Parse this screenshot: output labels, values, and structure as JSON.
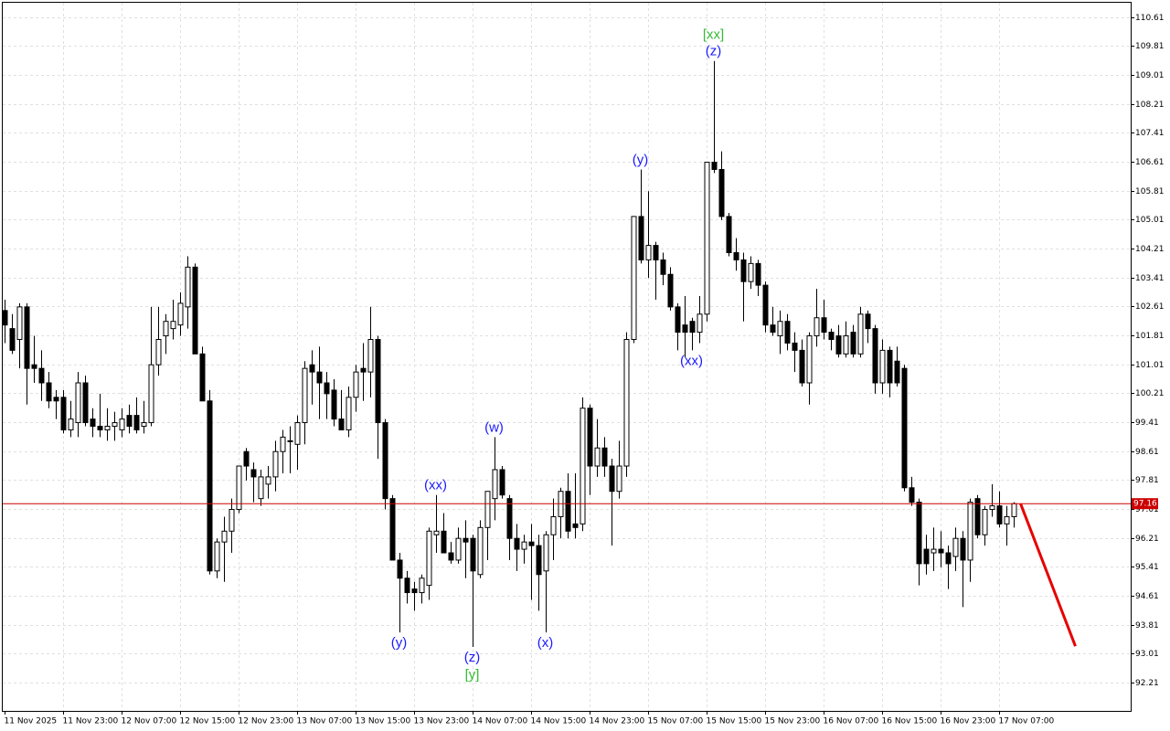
{
  "chart_data": {
    "type": "candlestick",
    "categories": [
      "11 Nov 2025",
      null,
      null,
      null,
      null,
      null,
      null,
      null,
      "11 Nov 23:00",
      null,
      null,
      null,
      null,
      null,
      null,
      null,
      "12 Nov 07:00",
      null,
      null,
      null,
      null,
      null,
      null,
      null,
      "12 Nov 15:00",
      null,
      null,
      null,
      null,
      null,
      null,
      null,
      "12 Nov 23:00",
      null,
      null,
      null,
      null,
      null,
      null,
      null,
      "13 Nov 07:00",
      null,
      null,
      null,
      null,
      null,
      null,
      null,
      "13 Nov 15:00",
      null,
      null,
      null,
      null,
      null,
      null,
      null,
      "13 Nov 23:00",
      null,
      null,
      null,
      null,
      null,
      null,
      null,
      "14 Nov 07:00",
      null,
      null,
      null,
      null,
      null,
      null,
      null,
      "14 Nov 15:00",
      null,
      null,
      null,
      null,
      null,
      null,
      null,
      "14 Nov 23:00",
      null,
      null,
      null,
      null,
      null,
      null,
      null,
      "15 Nov 07:00",
      null,
      null,
      null,
      null,
      null,
      null,
      null,
      "15 Nov 15:00",
      null,
      null,
      null,
      null,
      null,
      null,
      null,
      "15 Nov 23:00",
      null,
      null,
      null,
      null,
      null,
      null,
      null,
      "16 Nov 07:00",
      null,
      null,
      null,
      null,
      null,
      null,
      null,
      "16 Nov 15:00",
      null,
      null,
      null,
      null,
      null,
      null,
      null,
      "16 Nov 23:00",
      null,
      null,
      null,
      null,
      null,
      null,
      null,
      "17 Nov 07:00",
      null,
      null
    ],
    "open": [
      102.5,
      102.0,
      101.7,
      102.6,
      101.0,
      100.9,
      100.5,
      100.1,
      100.1,
      99.2,
      99.4,
      100.5,
      99.5,
      99.3,
      99.2,
      99.3,
      99.2,
      99.6,
      99.6,
      99.3,
      99.4,
      101.0,
      101.8,
      102.0,
      102.1,
      102.6,
      103.7,
      101.3,
      100.0,
      95.3,
      96.1,
      96.4,
      97.0,
      98.6,
      98.1,
      97.3,
      97.7,
      97.9,
      98.6,
      98.9,
      98.8,
      99.4,
      101.0,
      100.8,
      100.5,
      100.3,
      99.5,
      99.2,
      100.1,
      100.9,
      100.8,
      101.7,
      99.4,
      97.3,
      95.6,
      95.1,
      94.8,
      94.7,
      94.9,
      96.3,
      96.4,
      95.8,
      95.6,
      96.2,
      96.2,
      95.2,
      96.5,
      97.3,
      98.1,
      97.3,
      96.2,
      95.9,
      96.1,
      96.0,
      95.3,
      96.3,
      96.8,
      97.5,
      96.6,
      96.6,
      99.8,
      98.2,
      98.7,
      98.2,
      97.5,
      98.2,
      101.7,
      105.1,
      103.9,
      104.3,
      103.9,
      103.5,
      102.6,
      102.1,
      102.2,
      101.9,
      102.4,
      106.6,
      106.4,
      105.1,
      104.1,
      103.9,
      103.3,
      103.8,
      103.2,
      102.1,
      101.8,
      102.2,
      101.6,
      101.4,
      100.5,
      101.8,
      102.3,
      101.9,
      101.8,
      101.3,
      101.9,
      101.3,
      102.4,
      102.0,
      100.5,
      101.4,
      101.1,
      100.9,
      97.6,
      97.2,
      95.9,
      95.8,
      95.9,
      95.8,
      95.7,
      96.2,
      95.6,
      97.3,
      96.3,
      97.0,
      97.1,
      96.6,
      96.8
    ],
    "high": [
      102.8,
      102.4,
      102.7,
      102.7,
      101.8,
      101.4,
      100.8,
      100.3,
      100.3,
      100.0,
      100.8,
      100.7,
      99.8,
      100.2,
      99.8,
      99.7,
      99.8,
      99.9,
      100.1,
      100.0,
      102.6,
      102.6,
      102.4,
      102.8,
      103.0,
      104.0,
      103.8,
      101.5,
      100.3,
      96.2,
      96.8,
      97.3,
      98.2,
      98.7,
      98.3,
      98.1,
      98.2,
      98.9,
      99.2,
      99.3,
      99.6,
      101.1,
      101.4,
      101.5,
      100.8,
      100.6,
      100.3,
      100.4,
      101.0,
      101.6,
      102.6,
      101.8,
      99.5,
      97.4,
      95.8,
      95.3,
      95.0,
      95.2,
      96.5,
      97.4,
      96.9,
      96.1,
      96.5,
      96.7,
      96.3,
      96.7,
      97.5,
      99.0,
      98.2,
      97.4,
      96.6,
      96.3,
      96.6,
      96.3,
      96.4,
      97.3,
      97.6,
      98.0,
      98.0,
      100.1,
      99.9,
      99.5,
      99.0,
      98.4,
      98.9,
      101.9,
      105.1,
      106.4,
      105.8,
      104.4,
      104.1,
      103.7,
      102.7,
      102.9,
      102.3,
      102.9,
      106.6,
      109.4,
      106.9,
      105.2,
      104.5,
      104.1,
      104.0,
      103.9,
      103.3,
      102.6,
      102.5,
      102.4,
      101.9,
      101.7,
      101.9,
      103.1,
      102.8,
      102.0,
      102.1,
      102.2,
      102.1,
      102.6,
      102.5,
      102.1,
      101.7,
      101.5,
      101.5,
      101.0,
      97.9,
      97.3,
      96.3,
      96.5,
      96.4,
      96.0,
      96.5,
      96.4,
      97.3,
      97.4,
      97.1,
      97.7,
      97.5,
      97.1,
      97.2
    ],
    "low": [
      101.6,
      101.3,
      100.9,
      99.9,
      100.5,
      100.0,
      99.8,
      99.5,
      99.1,
      99.0,
      99.0,
      99.3,
      99.0,
      99.0,
      98.9,
      98.9,
      99.0,
      99.1,
      99.1,
      99.1,
      99.3,
      100.7,
      101.3,
      101.7,
      101.8,
      102.0,
      101.3,
      100.0,
      95.2,
      95.1,
      95.0,
      95.8,
      96.9,
      97.8,
      97.2,
      97.1,
      97.3,
      97.5,
      98.0,
      98.0,
      98.1,
      98.8,
      99.9,
      99.5,
      99.5,
      99.3,
      99.2,
      99.0,
      99.7,
      100.0,
      100.1,
      98.4,
      97.0,
      95.6,
      93.6,
      94.4,
      94.2,
      94.4,
      94.5,
      95.8,
      95.8,
      95.5,
      95.5,
      95.1,
      93.2,
      95.1,
      95.6,
      96.7,
      97.3,
      95.6,
      95.3,
      95.5,
      94.5,
      94.2,
      93.6,
      95.6,
      96.2,
      96.2,
      96.2,
      96.4,
      97.4,
      97.9,
      97.9,
      96.0,
      97.3,
      97.9,
      101.6,
      103.8,
      103.4,
      102.8,
      103.2,
      102.5,
      101.4,
      101.2,
      101.4,
      101.6,
      102.2,
      106.3,
      105.0,
      104.0,
      103.6,
      102.2,
      103.1,
      102.9,
      101.9,
      101.8,
      101.3,
      101.4,
      100.8,
      100.4,
      99.9,
      101.5,
      101.7,
      101.4,
      101.2,
      101.2,
      101.2,
      101.2,
      101.6,
      100.2,
      100.2,
      100.1,
      100.4,
      97.5,
      97.1,
      94.9,
      95.2,
      95.3,
      95.4,
      94.8,
      95.3,
      94.3,
      95.0,
      96.2,
      96.0,
      96.8,
      96.5,
      96.0,
      96.5
    ],
    "close": [
      102.1,
      101.4,
      102.6,
      100.9,
      100.9,
      100.5,
      100.0,
      100.0,
      99.2,
      99.5,
      100.5,
      99.4,
      99.3,
      99.2,
      99.3,
      99.4,
      99.5,
      99.3,
      99.2,
      99.4,
      101.0,
      101.7,
      102.2,
      102.2,
      102.7,
      103.7,
      101.3,
      100.0,
      95.3,
      96.1,
      96.4,
      97.0,
      98.2,
      98.2,
      97.9,
      97.9,
      97.9,
      98.6,
      99.0,
      98.9,
      99.4,
      100.9,
      100.8,
      100.5,
      100.2,
      99.5,
      99.2,
      100.1,
      100.8,
      100.8,
      101.7,
      99.4,
      97.3,
      95.6,
      95.1,
      94.7,
      94.7,
      95.1,
      96.4,
      96.4,
      95.8,
      95.6,
      96.2,
      96.1,
      95.3,
      96.5,
      97.5,
      98.1,
      97.4,
      96.2,
      95.9,
      96.1,
      96.0,
      95.2,
      96.3,
      96.8,
      97.5,
      96.4,
      96.5,
      99.8,
      98.2,
      98.7,
      98.2,
      97.5,
      98.2,
      101.7,
      105.1,
      103.9,
      104.3,
      103.9,
      103.5,
      102.6,
      101.9,
      101.9,
      101.9,
      102.4,
      106.6,
      106.4,
      105.1,
      104.1,
      103.9,
      103.3,
      103.8,
      103.2,
      102.1,
      101.9,
      102.2,
      101.6,
      101.4,
      100.5,
      101.8,
      102.3,
      101.9,
      101.7,
      101.3,
      101.8,
      101.3,
      102.4,
      102.0,
      100.5,
      101.4,
      100.5,
      100.5,
      97.6,
      97.2,
      95.5,
      95.5,
      95.9,
      95.8,
      95.5,
      96.2,
      95.6,
      97.2,
      96.3,
      97.0,
      97.1,
      96.6,
      96.8,
      97.16
    ],
    "colors": {
      "bull": "#ffffff",
      "bear": "#000000",
      "outline": "#000000"
    },
    "ylim": [
      91.43,
      111.01
    ],
    "yticks": [
      110.61,
      109.81,
      109.01,
      108.21,
      107.41,
      106.61,
      105.81,
      105.01,
      104.21,
      103.41,
      102.61,
      101.81,
      101.01,
      100.21,
      99.41,
      98.61,
      97.81,
      97.01,
      96.21,
      95.41,
      94.61,
      93.81,
      93.01,
      92.21
    ],
    "grid": true,
    "price_line": {
      "value": 97.16,
      "color": "#cc0000"
    },
    "forecast": {
      "color": "#e60000",
      "values": [
        97.16,
        93.22
      ]
    },
    "annotations": [
      {
        "text": "(y)",
        "index": 54,
        "position": "below",
        "color": "#1a1aff"
      },
      {
        "text": "(xx)",
        "index": 59,
        "position": "above",
        "color": "#1a1aff"
      },
      {
        "text": "(z)",
        "index": 64,
        "position": "below",
        "color": "#1a1aff"
      },
      {
        "text": "[y]",
        "index": 64,
        "position": "below",
        "color": "#33bb33"
      },
      {
        "text": "(w)",
        "index": 67,
        "position": "above",
        "color": "#1a1aff"
      },
      {
        "text": "(x)",
        "index": 74,
        "position": "below",
        "color": "#1a1aff"
      },
      {
        "text": "(y)",
        "index": 87,
        "position": "above",
        "color": "#1a1aff"
      },
      {
        "text": "(xx)",
        "index": 94,
        "position": "below",
        "color": "#1a1aff"
      },
      {
        "text": "(z)",
        "index": 97,
        "position": "above",
        "color": "#1a1aff"
      },
      {
        "text": "[xx]",
        "index": 97,
        "position": "above",
        "color": "#33bb33"
      }
    ]
  }
}
